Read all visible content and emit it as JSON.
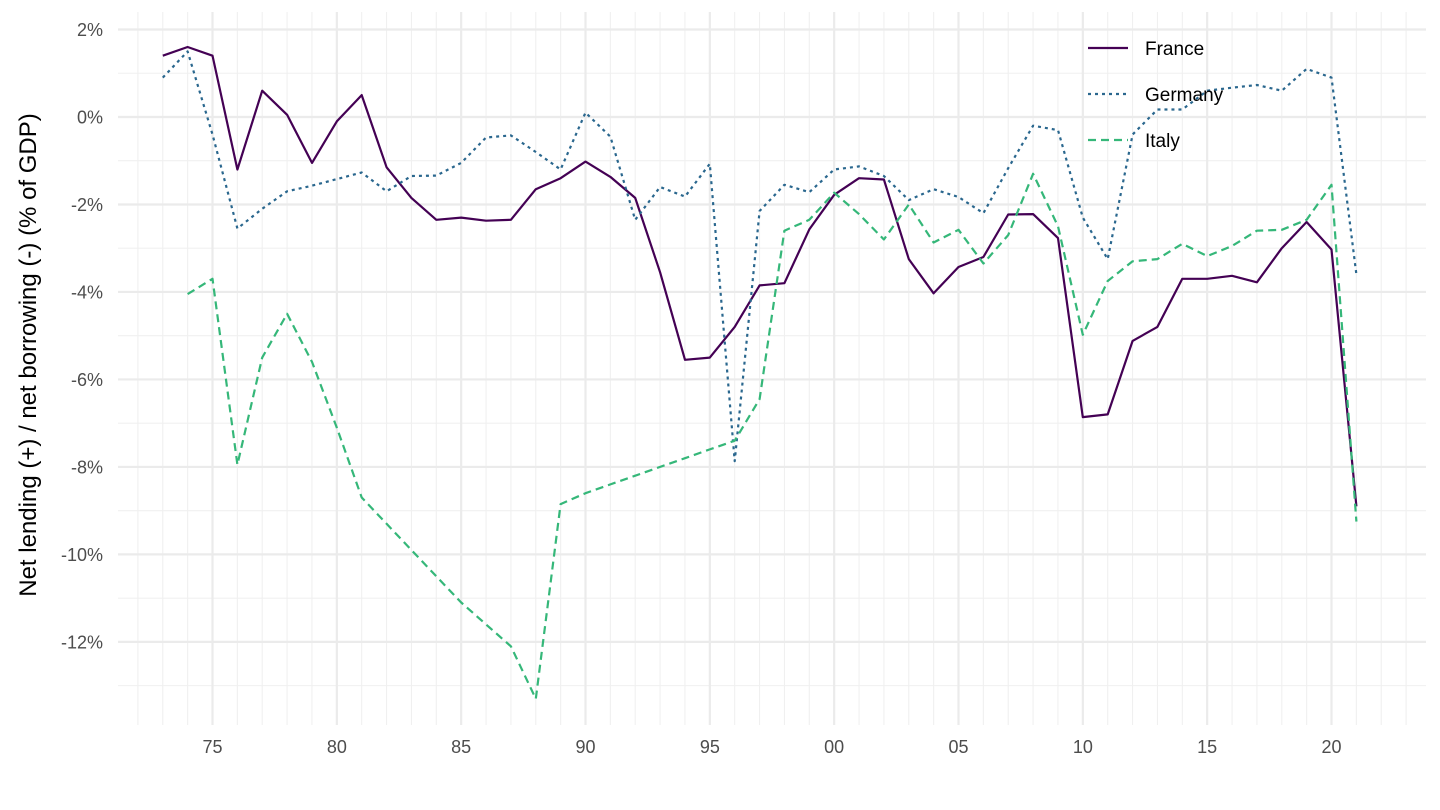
{
  "chart_data": {
    "type": "line",
    "title": "",
    "xlabel": "",
    "ylabel": "Net lending (+) / net borrowing (-) (% of GDP)",
    "x_ticks": [
      {
        "year": 1975,
        "label": "75"
      },
      {
        "year": 1980,
        "label": "80"
      },
      {
        "year": 1985,
        "label": "85"
      },
      {
        "year": 1990,
        "label": "90"
      },
      {
        "year": 1995,
        "label": "95"
      },
      {
        "year": 2000,
        "label": "00"
      },
      {
        "year": 2005,
        "label": "05"
      },
      {
        "year": 2010,
        "label": "10"
      },
      {
        "year": 2015,
        "label": "15"
      },
      {
        "year": 2020,
        "label": "20"
      }
    ],
    "y_ticks": [
      {
        "value": 2,
        "label": "2%"
      },
      {
        "value": 0,
        "label": "0%"
      },
      {
        "value": -2,
        "label": "-2%"
      },
      {
        "value": -4,
        "label": "-4%"
      },
      {
        "value": -6,
        "label": "-6%"
      },
      {
        "value": -8,
        "label": "-8%"
      },
      {
        "value": -10,
        "label": "-10%"
      },
      {
        "value": -12,
        "label": "-12%"
      }
    ],
    "xlim": [
      1971.2,
      2023.8
    ],
    "ylim": [
      -13.9,
      2.4
    ],
    "grid": true,
    "legend_position": "top-right",
    "series": [
      {
        "name": "France",
        "color": "#440154",
        "dash": "solid",
        "x": [
          1973,
          1974,
          1975,
          1976,
          1977,
          1978,
          1979,
          1980,
          1981,
          1982,
          1983,
          1984,
          1985,
          1986,
          1987,
          1988,
          1989,
          1990,
          1991,
          1992,
          1993,
          1994,
          1995,
          1996,
          1997,
          1998,
          1999,
          2000,
          2001,
          2002,
          2003,
          2004,
          2005,
          2006,
          2007,
          2008,
          2009,
          2010,
          2011,
          2012,
          2013,
          2014,
          2015,
          2016,
          2017,
          2018,
          2019,
          2020,
          2021
        ],
        "values": [
          1.4,
          1.6,
          1.4,
          -1.2,
          0.6,
          0.05,
          -1.05,
          -0.1,
          0.5,
          -1.15,
          -1.85,
          -2.35,
          -2.3,
          -2.37,
          -2.35,
          -1.65,
          -1.4,
          -1.02,
          -1.37,
          -1.85,
          -3.55,
          -5.55,
          -5.5,
          -4.8,
          -3.85,
          -3.8,
          -2.57,
          -1.78,
          -1.4,
          -1.43,
          -3.25,
          -4.03,
          -3.43,
          -3.2,
          -2.23,
          -2.22,
          -2.77,
          -6.86,
          -6.8,
          -5.12,
          -4.8,
          -3.7,
          -3.7,
          -3.63,
          -3.78,
          -3.0,
          -2.4,
          -3.03,
          -8.9
        ]
      },
      {
        "name": "Germany",
        "color": "#2a678e",
        "dash": "dotted",
        "x": [
          1973,
          1974,
          1975,
          1976,
          1977,
          1978,
          1979,
          1980,
          1981,
          1982,
          1983,
          1984,
          1985,
          1986,
          1987,
          1988,
          1989,
          1990,
          1991,
          1992,
          1993,
          1994,
          1995,
          1996,
          1997,
          1998,
          1999,
          2000,
          2001,
          2002,
          2003,
          2004,
          2005,
          2006,
          2007,
          2008,
          2009,
          2010,
          2011,
          2012,
          2013,
          2014,
          2015,
          2016,
          2017,
          2018,
          2019,
          2020,
          2021
        ],
        "values": [
          0.9,
          1.5,
          -0.4,
          -2.55,
          -2.1,
          -1.7,
          -1.57,
          -1.42,
          -1.27,
          -1.7,
          -1.35,
          -1.34,
          -1.05,
          -0.47,
          -0.42,
          -0.8,
          -1.2,
          0.1,
          -0.45,
          -2.35,
          -1.6,
          -1.82,
          -1.07,
          -7.87,
          -2.15,
          -1.55,
          -1.72,
          -1.2,
          -1.13,
          -1.35,
          -1.9,
          -1.65,
          -1.83,
          -2.2,
          -1.17,
          -0.2,
          -0.3,
          -2.3,
          -3.25,
          -0.4,
          0.17,
          0.17,
          0.6,
          0.67,
          0.73,
          0.6,
          1.1,
          0.9,
          -3.6
        ]
      },
      {
        "name": "Italy",
        "color": "#35b779",
        "dash": "dashed",
        "x": [
          1974,
          1975,
          1976,
          1977,
          1978,
          1979,
          1980,
          1981,
          1982,
          1983,
          1984,
          1985,
          1986,
          1987,
          1988,
          1989,
          1990,
          1991,
          1992,
          1993,
          1994,
          1995,
          1996,
          1997,
          1998,
          1999,
          2000,
          2001,
          2002,
          2003,
          2004,
          2005,
          2006,
          2007,
          2008,
          2009,
          2010,
          2011,
          2012,
          2013,
          2014,
          2015,
          2016,
          2017,
          2018,
          2019,
          2020,
          2021
        ],
        "values": [
          -4.05,
          -3.7,
          -7.95,
          -5.5,
          -4.5,
          -5.6,
          -7.1,
          -8.7,
          -9.3,
          -9.9,
          -10.5,
          -11.1,
          -11.6,
          -12.1,
          -13.3,
          -8.85,
          -8.6,
          -8.4,
          -8.2,
          -8.0,
          -7.8,
          -7.6,
          -7.4,
          -6.45,
          -2.6,
          -2.35,
          -1.73,
          -2.22,
          -2.8,
          -2.0,
          -2.87,
          -2.58,
          -3.35,
          -2.7,
          -1.3,
          -2.5,
          -4.98,
          -3.75,
          -3.3,
          -3.25,
          -2.9,
          -3.18,
          -2.95,
          -2.6,
          -2.58,
          -2.35,
          -1.55,
          -9.25
        ]
      }
    ]
  }
}
